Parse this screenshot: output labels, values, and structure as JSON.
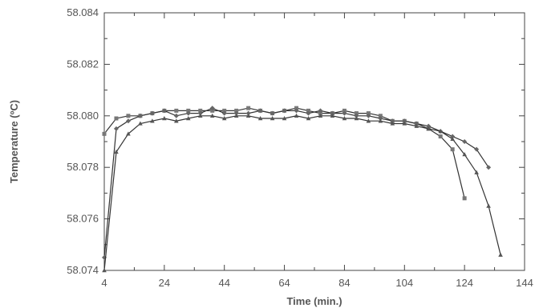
{
  "chart_data": {
    "type": "line",
    "title": "",
    "xlabel": "Time (min.)",
    "ylabel": "Temperature (ºC)",
    "xlim": [
      4,
      144
    ],
    "ylim": [
      58.074,
      58.084
    ],
    "xticks": [
      4,
      24,
      44,
      64,
      84,
      104,
      124,
      144
    ],
    "yticks": [
      58.074,
      58.076,
      58.078,
      58.08,
      58.082,
      58.084
    ],
    "x_tick_labels": [
      "4",
      "24",
      "44",
      "64",
      "84",
      "104",
      "124",
      "144"
    ],
    "y_tick_labels": [
      "58.074",
      "58.076",
      "58.078",
      "58.080",
      "58.082",
      "58.084"
    ],
    "grid": false,
    "series": [
      {
        "marker": "square",
        "color": "#777777",
        "x": [
          4,
          8,
          12,
          16,
          20,
          24,
          28,
          32,
          36,
          40,
          44,
          48,
          52,
          56,
          60,
          64,
          68,
          72,
          76,
          80,
          84,
          88,
          92,
          96,
          100,
          104,
          108,
          112,
          116,
          120,
          124
        ],
        "y": [
          58.0793,
          58.0799,
          58.08,
          58.08,
          58.0801,
          58.0802,
          58.0802,
          58.0802,
          58.0802,
          58.0802,
          58.0802,
          58.0802,
          58.0803,
          58.0802,
          58.0801,
          58.0802,
          58.0803,
          58.0802,
          58.0801,
          58.0801,
          58.0802,
          58.0801,
          58.0801,
          58.08,
          58.0798,
          58.0798,
          58.0797,
          58.0795,
          58.0792,
          58.0787,
          58.0768
        ]
      },
      {
        "marker": "diamond",
        "color": "#666666",
        "x": [
          4,
          8,
          12,
          16,
          20,
          24,
          28,
          32,
          36,
          40,
          44,
          48,
          52,
          56,
          60,
          64,
          68,
          72,
          76,
          80,
          84,
          88,
          92,
          96,
          100,
          104,
          108,
          112,
          116,
          120,
          124,
          128,
          132
        ],
        "y": [
          58.0745,
          58.0795,
          58.0798,
          58.08,
          58.0801,
          58.0802,
          58.08,
          58.0801,
          58.0801,
          58.0803,
          58.0801,
          58.0801,
          58.0801,
          58.0802,
          58.0801,
          58.0802,
          58.0802,
          58.0801,
          58.0802,
          58.0801,
          58.0801,
          58.08,
          58.08,
          58.0799,
          58.0798,
          58.0798,
          58.0797,
          58.0796,
          58.0794,
          58.0792,
          58.079,
          58.0787,
          58.078
        ]
      },
      {
        "marker": "triangle",
        "color": "#555555",
        "x": [
          4,
          8,
          12,
          16,
          20,
          24,
          28,
          32,
          36,
          40,
          44,
          48,
          52,
          56,
          60,
          64,
          68,
          72,
          76,
          80,
          84,
          88,
          92,
          96,
          100,
          104,
          108,
          112,
          116,
          120,
          124,
          128,
          132,
          136
        ],
        "y": [
          58.074,
          58.0786,
          58.0793,
          58.0797,
          58.0798,
          58.0799,
          58.0798,
          58.0799,
          58.08,
          58.08,
          58.0799,
          58.08,
          58.08,
          58.0799,
          58.0799,
          58.0799,
          58.08,
          58.0799,
          58.08,
          58.08,
          58.0799,
          58.0799,
          58.0798,
          58.0798,
          58.0797,
          58.0797,
          58.0796,
          58.0795,
          58.0794,
          58.0791,
          58.0785,
          58.0778,
          58.0765,
          58.0746
        ]
      }
    ]
  }
}
